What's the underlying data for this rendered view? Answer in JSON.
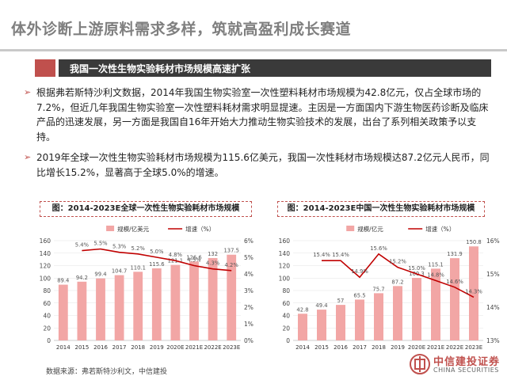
{
  "page": {
    "title": "体外诊断上游原料需求多样，筑就高盈利成长赛道",
    "section_title": "我国一次性生物实验耗材市场规模高速扩张",
    "bullets": [
      "根据弗若斯特沙利文数据，2014年我国生物实验室一次性塑料耗材市场规模为42.8亿元，仅占全球市场的7.2%，但近几年我国生物实验室一次性塑料耗材需求明显提速。主因是一方面国内下游生物医药诊断及临床产品的迅速发展，另一方面是我国自16年开始大力推动生物实验技术的发展，出台了系列相关政策予以支持。",
      "2019年全球一次性生物实验耗材市场规模为115.6亿美元，我国一次性耗材市场规模达87.2亿元人民币，同比增长15.2%，显著高于全球5.0%的增速。"
    ],
    "bullet_marker": "➢",
    "source": "数据来源：弗若斯特沙利文，中信建投",
    "logo": {
      "cn": "中信建投证券",
      "en": "CHINA SECURITIES"
    }
  },
  "chart_data": [
    {
      "type": "bar",
      "title": "图：2014-2023E全球一次性生物实验耗材市场规模",
      "categories": [
        "2014",
        "2015",
        "2016",
        "2017",
        "2018",
        "2019",
        "2020E",
        "2021E",
        "2022E",
        "2023E"
      ],
      "series": [
        {
          "name": "规模/亿美元",
          "type": "bar",
          "axis": "left",
          "values": [
            89.4,
            94.2,
            99.4,
            104.7,
            110.1,
            115.6,
            121.1,
            126.6,
            132.1,
            137.5
          ],
          "labels": [
            "89.4",
            "94.2",
            "99.4",
            "104.7",
            "110.1",
            "115.6",
            "121.1",
            "126.6",
            "132",
            "137.5"
          ]
        },
        {
          "name": "增速（%）",
          "type": "line",
          "axis": "right",
          "values": [
            null,
            5.4,
            5.5,
            5.3,
            5.2,
            5.0,
            4.8,
            4.5,
            4.3,
            4.2
          ],
          "labels": [
            "",
            "5.4%",
            "5.5%",
            "5.3%",
            "5.2%",
            "5.0%",
            "4.8%",
            "4.5%",
            "4.3%",
            "4.2%"
          ]
        }
      ],
      "y_left": {
        "min": 0,
        "max": 160,
        "step": 20
      },
      "y_right": {
        "min": 0,
        "max": 6,
        "step": 1,
        "ticks": [
          "0%",
          "1%",
          "2%",
          "3%",
          "4%",
          "5%",
          "6%"
        ]
      },
      "legend": "top",
      "colors": {
        "bar": "#f2a6a5",
        "line": "#c00000"
      }
    },
    {
      "type": "bar",
      "title": "图：2014-2023E中国一次性生物实验耗材市场规模",
      "categories": [
        "2014",
        "2015",
        "2016",
        "2017",
        "2018",
        "2019",
        "2020E",
        "2021E",
        "2022E",
        "2023E"
      ],
      "series": [
        {
          "name": "规模/亿元",
          "type": "bar",
          "axis": "left",
          "values": [
            42.8,
            49.4,
            57.0,
            65.5,
            75.7,
            87.2,
            100.3,
            115.1,
            131.9,
            150.8
          ],
          "labels": [
            "42.8",
            "49.4",
            "57",
            "65.5",
            "75.7",
            "87.2",
            "100.3",
            "115.1",
            "131.9",
            "150.8"
          ]
        },
        {
          "name": "增速（%）",
          "type": "line",
          "axis": "right",
          "values": [
            null,
            15.4,
            15.4,
            14.9,
            15.6,
            15.2,
            15.0,
            14.8,
            14.6,
            14.3
          ],
          "labels": [
            "",
            "15.4%",
            "15.4%",
            "14.9%",
            "15.6%",
            "15.2%",
            "15.0%",
            "14.8%",
            "14.6%",
            "14.3%"
          ]
        }
      ],
      "y_left": {
        "min": 0,
        "max": 160,
        "step": 20
      },
      "y_right": {
        "min": 13,
        "max": 16,
        "step": 1,
        "ticks": [
          "13%",
          "14%",
          "15%",
          "16%"
        ]
      },
      "legend": "top",
      "colors": {
        "bar": "#f2a6a5",
        "line": "#c00000"
      }
    }
  ]
}
